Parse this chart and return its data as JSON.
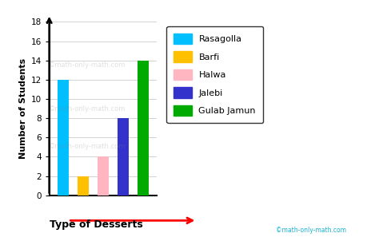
{
  "categories": [
    "Rasagolla",
    "Barfi",
    "Halwa",
    "Jalebi",
    "Gulab Jamun"
  ],
  "values": [
    12,
    2,
    4,
    8,
    14
  ],
  "bar_colors": [
    "#00BFFF",
    "#FFC000",
    "#FFB6C1",
    "#3333CC",
    "#00AA00"
  ],
  "xlabel": "Type of Desserts",
  "ylabel": "Number of Students",
  "ylim": [
    0,
    18
  ],
  "yticks": [
    0,
    2,
    4,
    6,
    8,
    10,
    12,
    14,
    16,
    18
  ],
  "background_color": "#ffffff",
  "watermark": "©math-only-math.com",
  "legend_labels": [
    "Rasagolla",
    "Barfi",
    "Halwa",
    "Jalebi",
    "Gulab Jamun"
  ]
}
